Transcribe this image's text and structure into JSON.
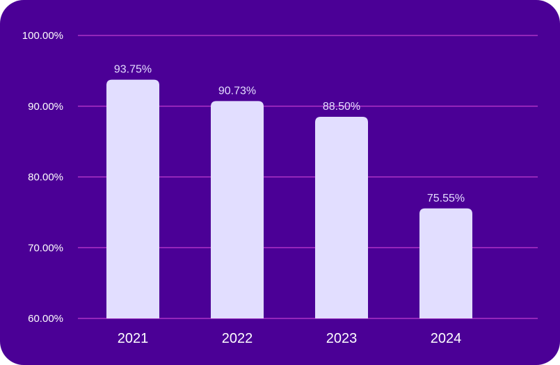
{
  "chart_data": {
    "type": "bar",
    "categories": [
      "2021",
      "2022",
      "2023",
      "2024"
    ],
    "values": [
      93.75,
      90.73,
      88.5,
      75.55
    ],
    "data_labels": [
      "93.75%",
      "90.73%",
      "88.50%",
      "75.55%"
    ],
    "ylim": [
      60,
      100
    ],
    "yticks": [
      60,
      70,
      80,
      90,
      100
    ],
    "ytick_labels": [
      "60.00%",
      "70.00%",
      "80.00%",
      "90.00%",
      "100.00%"
    ],
    "title": "",
    "xlabel": "",
    "ylabel": "",
    "grid": true,
    "legend": "none"
  },
  "colors": {
    "background": "#4b0096",
    "bar": "#e2deff",
    "gridline": "#c03ccf",
    "text": "#ffffff",
    "data_label": "#e4ddff"
  }
}
